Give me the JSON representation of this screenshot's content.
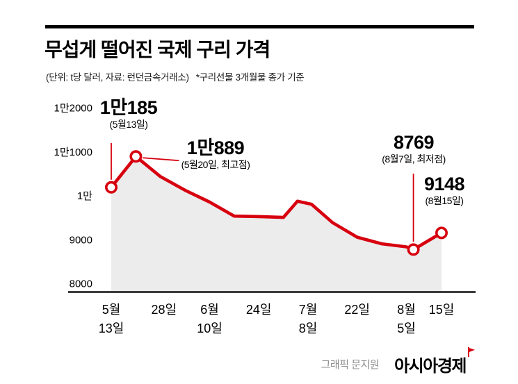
{
  "title": "무섭게 떨어진 국제 구리 가격",
  "subtitle_unit_source": "(단위: t당 달러, 자료: 런던금속거래소)",
  "subtitle_note": "*구리선물 3개월물 종가 기준",
  "footer": {
    "credit": "그래픽 문지원",
    "brand": "아시아경제"
  },
  "colors": {
    "line": "#d7000f",
    "area": "#ececec",
    "axis": "#111111"
  },
  "chart_data": {
    "type": "line",
    "title": "무섭게 떨어진 국제 구리 가격",
    "unit": "t당 달러",
    "source": "런던금속거래소",
    "note": "구리선물 3개월물 종가 기준",
    "ylim": [
      8000,
      12400
    ],
    "grid": false,
    "x_days": [
      0,
      7,
      14,
      21,
      28,
      35,
      42,
      49,
      53,
      57,
      63,
      70,
      77,
      84,
      86,
      94
    ],
    "values": [
      10185,
      10889,
      10430,
      10120,
      9850,
      9530,
      9520,
      9500,
      9870,
      9800,
      9380,
      9050,
      8900,
      8830,
      8769,
      9148
    ],
    "y_ticks": [
      {
        "label": "1만2000",
        "value": 12000
      },
      {
        "label": "1만1000",
        "value": 11000
      },
      {
        "label": "1만",
        "value": 10000
      },
      {
        "label": "9000",
        "value": 9000
      },
      {
        "label": "8000",
        "value": 8000
      }
    ],
    "x_ticks": [
      {
        "day": 0,
        "line1": "5월",
        "line2": "13일"
      },
      {
        "day": 15,
        "line1": "28일",
        "line2": ""
      },
      {
        "day": 28,
        "line1": "6월",
        "line2": "10일"
      },
      {
        "day": 42,
        "line1": "24일",
        "line2": ""
      },
      {
        "day": 56,
        "line1": "7월",
        "line2": "8일"
      },
      {
        "day": 70,
        "line1": "22일",
        "line2": ""
      },
      {
        "day": 84,
        "line1": "8월",
        "line2": "5일"
      },
      {
        "day": 94,
        "line1": "15일",
        "line2": ""
      }
    ],
    "annotations": [
      {
        "value_label": "1만185",
        "date_label": "(5월13일)",
        "day": 0,
        "value": 10185
      },
      {
        "value_label": "1만889",
        "date_label": "(5월20일, 최고점)",
        "day": 7,
        "value": 10889
      },
      {
        "value_label": "8769",
        "date_label": "(8월7일, 최저점)",
        "day": 86,
        "value": 8769
      },
      {
        "value_label": "9148",
        "date_label": "(8월15일)",
        "day": 94,
        "value": 9148
      }
    ]
  }
}
